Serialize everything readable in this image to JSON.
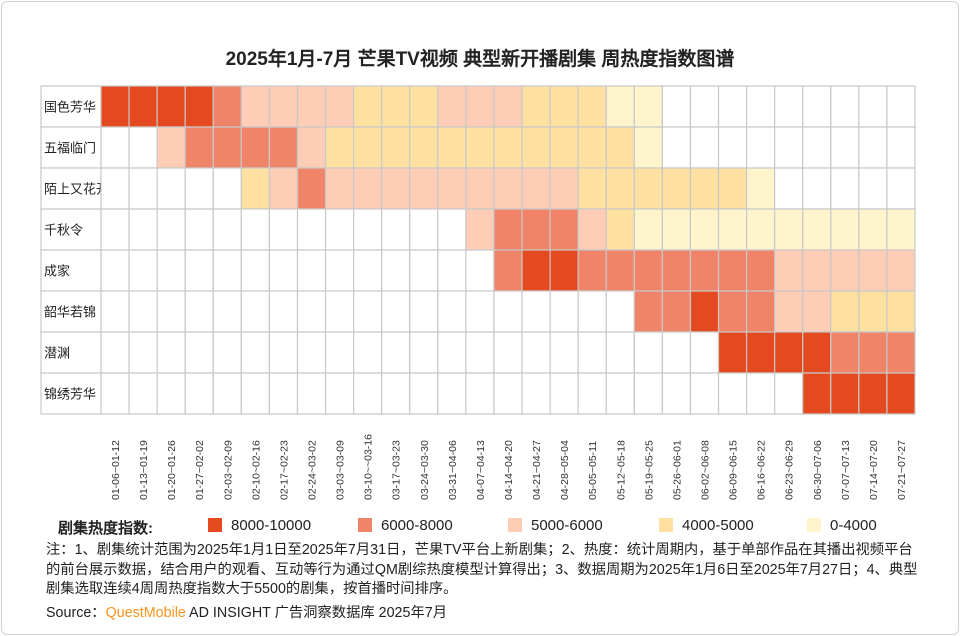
{
  "chart_data": {
    "type": "heatmap",
    "title": "2025年1月-7月 芒果TV视频 典型新开播剧集 周热度指数图谱",
    "rows": [
      "国色芳华",
      "五福临门",
      "陌上又花开",
      "千秋令",
      "成家",
      "韶华若锦",
      "潜渊",
      "锦绣芳华"
    ],
    "columns": [
      "01-06~01-12",
      "01-13~01-19",
      "01-20~01-26",
      "01-27~02-02",
      "02-03~02-09",
      "02-10~02-16",
      "02-17~02-23",
      "02-24~03-02",
      "03-03~03-09",
      "03-10~~03-16",
      "03-17~03-23",
      "03-24~03-30",
      "03-31~04-06",
      "04-07~04-13",
      "04-14~04-20",
      "04-21~04-27",
      "04-28~05-04",
      "05-05~05-11",
      "05-12~05-18",
      "05-19~05-25",
      "05-26~06-01",
      "06-02~06-08",
      "06-09~06-15",
      "06-16~06-22",
      "06-23~06-29",
      "06-30~07-06",
      "07-07~07-13",
      "07-14~07-20",
      "07-21~07-27"
    ],
    "levels": [
      {
        "label": "8000-10000",
        "color": "#E5491F"
      },
      {
        "label": "6000-8000",
        "color": "#F08468"
      },
      {
        "label": "5000-6000",
        "color": "#FFCCB5"
      },
      {
        "label": "4000-5000",
        "color": "#FEE1A0"
      },
      {
        "label": "0-4000",
        "color": "#FFF4CC"
      }
    ],
    "cells_note": "values are level indexes: 5=8000-10000, 4=6000-8000, 3=5000-6000, 2=4000-5000, 1=0-4000, 0=no data",
    "values": [
      [
        5,
        5,
        5,
        5,
        4,
        3,
        3,
        3,
        3,
        2,
        2,
        2,
        3,
        3,
        3,
        2,
        2,
        2,
        1,
        1,
        0,
        0,
        0,
        0,
        0,
        0,
        0,
        0,
        0
      ],
      [
        0,
        0,
        3,
        4,
        4,
        4,
        4,
        3,
        2,
        2,
        2,
        2,
        2,
        2,
        2,
        2,
        2,
        2,
        2,
        1,
        0,
        0,
        0,
        0,
        0,
        0,
        0,
        0,
        0
      ],
      [
        0,
        0,
        0,
        0,
        0,
        2,
        3,
        4,
        3,
        3,
        3,
        3,
        3,
        3,
        3,
        3,
        3,
        2,
        2,
        2,
        2,
        2,
        2,
        1,
        0,
        0,
        0,
        0,
        0
      ],
      [
        0,
        0,
        0,
        0,
        0,
        0,
        0,
        0,
        0,
        0,
        0,
        0,
        0,
        3,
        4,
        4,
        4,
        3,
        2,
        1,
        1,
        1,
        1,
        1,
        1,
        1,
        1,
        1,
        1
      ],
      [
        0,
        0,
        0,
        0,
        0,
        0,
        0,
        0,
        0,
        0,
        0,
        0,
        0,
        0,
        4,
        5,
        5,
        4,
        4,
        4,
        4,
        4,
        4,
        4,
        3,
        3,
        3,
        3,
        3
      ],
      [
        0,
        0,
        0,
        0,
        0,
        0,
        0,
        0,
        0,
        0,
        0,
        0,
        0,
        0,
        0,
        0,
        0,
        0,
        0,
        4,
        4,
        5,
        4,
        4,
        3,
        3,
        2,
        2,
        2
      ],
      [
        0,
        0,
        0,
        0,
        0,
        0,
        0,
        0,
        0,
        0,
        0,
        0,
        0,
        0,
        0,
        0,
        0,
        0,
        0,
        0,
        0,
        0,
        5,
        5,
        5,
        5,
        4,
        4,
        4
      ],
      [
        0,
        0,
        0,
        0,
        0,
        0,
        0,
        0,
        0,
        0,
        0,
        0,
        0,
        0,
        0,
        0,
        0,
        0,
        0,
        0,
        0,
        0,
        0,
        0,
        0,
        5,
        5,
        5,
        5
      ]
    ],
    "legend_title": "剧集热度指数:",
    "legend_placement": "bottom"
  },
  "note": "注：1、剧集统计范围为2025年1月1日至2025年7月31日，芒果TV平台上新剧集；2、热度：统计周期内，基于单部作品在其播出视频平台的前台展示数据，结合用户的观看、互动等行为通过QM剧综热度模型计算得出；3、数据周期为2025年1月6日至2025年7月27日；4、典型剧集选取连续4周周热度指数大于5500的剧集，按首播时间排序。",
  "source": {
    "prefix": "Source：",
    "brand": "QuestMobile",
    "rest": " AD INSIGHT 广告洞察数据库 2025年7月",
    "brand_color": "#F7941D"
  }
}
